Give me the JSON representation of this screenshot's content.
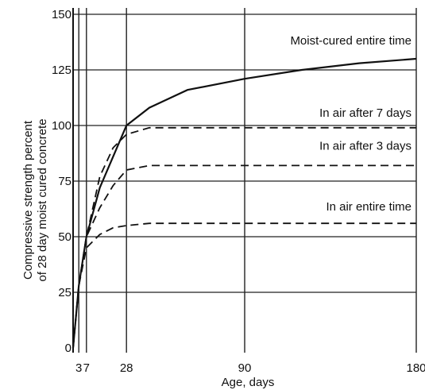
{
  "chart_data": {
    "type": "line",
    "title": "",
    "xlabel": "Age, days",
    "ylabel_lines": [
      "Compressive strength percent",
      "of 28 day moist cured concrete"
    ],
    "x_ticks": [
      3,
      7,
      28,
      90,
      180
    ],
    "y_ticks": [
      0,
      25,
      50,
      75,
      100,
      125,
      150
    ],
    "xlim": [
      0,
      180
    ],
    "ylim": [
      0,
      150
    ],
    "grid": true,
    "legend": "none",
    "series": [
      {
        "name": "Moist-cured entire time",
        "style": "solid",
        "points": [
          [
            0,
            0
          ],
          [
            3,
            28
          ],
          [
            7,
            50
          ],
          [
            14,
            72
          ],
          [
            21,
            86
          ],
          [
            28,
            100
          ],
          [
            40,
            108
          ],
          [
            60,
            116
          ],
          [
            90,
            121
          ],
          [
            120,
            125
          ],
          [
            150,
            128
          ],
          [
            180,
            130
          ]
        ]
      },
      {
        "name": "In air after 7 days",
        "style": "dashed",
        "points": [
          [
            0,
            0
          ],
          [
            3,
            28
          ],
          [
            7,
            50
          ],
          [
            14,
            77
          ],
          [
            21,
            90
          ],
          [
            28,
            96
          ],
          [
            40,
            99
          ],
          [
            60,
            99
          ],
          [
            90,
            99
          ],
          [
            120,
            99
          ],
          [
            150,
            99
          ],
          [
            180,
            99
          ]
        ]
      },
      {
        "name": "In air after 3 days",
        "style": "dashed",
        "points": [
          [
            0,
            0
          ],
          [
            3,
            28
          ],
          [
            7,
            50
          ],
          [
            14,
            63
          ],
          [
            21,
            73
          ],
          [
            28,
            80
          ],
          [
            40,
            82
          ],
          [
            60,
            82
          ],
          [
            90,
            82
          ],
          [
            120,
            82
          ],
          [
            150,
            82
          ],
          [
            180,
            82
          ]
        ]
      },
      {
        "name": "In air entire time",
        "style": "dashed",
        "points": [
          [
            0,
            0
          ],
          [
            3,
            28
          ],
          [
            7,
            45
          ],
          [
            14,
            51
          ],
          [
            21,
            54
          ],
          [
            28,
            55
          ],
          [
            40,
            56
          ],
          [
            60,
            56
          ],
          [
            90,
            56
          ],
          [
            120,
            56
          ],
          [
            150,
            56
          ],
          [
            180,
            56
          ]
        ]
      }
    ],
    "annotations": [
      {
        "text": "Moist-cured entire time",
        "series": 0
      },
      {
        "text": "In air after 7 days",
        "series": 1
      },
      {
        "text": "In air after 3 days",
        "series": 2
      },
      {
        "text": "In air entire time",
        "series": 3
      }
    ]
  }
}
